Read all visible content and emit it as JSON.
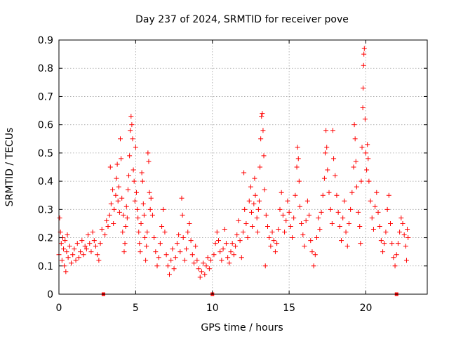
{
  "chart_data": {
    "type": "scatter",
    "title": "Day 237 of 2024, SRMTID for receiver pove",
    "xlabel": "GPS time / hours",
    "ylabel": "SRMTID / TECUs",
    "xlim": [
      0,
      24
    ],
    "ylim": [
      0,
      0.9
    ],
    "xticks": [
      0,
      5,
      10,
      15,
      20
    ],
    "xtick_labels": [
      "0",
      "5",
      "10",
      "15",
      "20"
    ],
    "yticks": [
      0,
      0.1,
      0.2,
      0.3,
      0.4,
      0.5,
      0.6,
      0.7,
      0.8,
      0.9
    ],
    "ytick_labels": [
      "0",
      "0.1",
      "0.2",
      "0.3",
      "0.4",
      "0.5",
      "0.6",
      "0.7",
      "0.8",
      "0.9"
    ],
    "grid": true,
    "marker": "+",
    "color": "#ff0000",
    "zero_markers": [
      2.9,
      10.0,
      22.0
    ],
    "series": [
      {
        "name": "SRMTID",
        "points": [
          [
            0.0,
            0.14
          ],
          [
            0.05,
            0.27
          ],
          [
            0.1,
            0.22
          ],
          [
            0.15,
            0.18
          ],
          [
            0.2,
            0.12
          ],
          [
            0.25,
            0.2
          ],
          [
            0.3,
            0.16
          ],
          [
            0.35,
            0.1
          ],
          [
            0.4,
            0.19
          ],
          [
            0.45,
            0.08
          ],
          [
            0.5,
            0.15
          ],
          [
            0.55,
            0.21
          ],
          [
            0.6,
            0.13
          ],
          [
            0.7,
            0.17
          ],
          [
            0.8,
            0.11
          ],
          [
            0.9,
            0.14
          ],
          [
            1.0,
            0.16
          ],
          [
            1.1,
            0.12
          ],
          [
            1.2,
            0.18
          ],
          [
            1.3,
            0.13
          ],
          [
            1.4,
            0.15
          ],
          [
            1.5,
            0.19
          ],
          [
            1.6,
            0.14
          ],
          [
            1.7,
            0.17
          ],
          [
            1.8,
            0.16
          ],
          [
            1.9,
            0.21
          ],
          [
            2.0,
            0.18
          ],
          [
            2.1,
            0.15
          ],
          [
            2.2,
            0.22
          ],
          [
            2.3,
            0.19
          ],
          [
            2.4,
            0.17
          ],
          [
            2.5,
            0.14
          ],
          [
            2.6,
            0.12
          ],
          [
            2.7,
            0.18
          ],
          [
            2.8,
            0.23
          ],
          [
            3.0,
            0.21
          ],
          [
            3.1,
            0.26
          ],
          [
            3.2,
            0.24
          ],
          [
            3.3,
            0.28
          ],
          [
            3.35,
            0.45
          ],
          [
            3.4,
            0.32
          ],
          [
            3.5,
            0.37
          ],
          [
            3.55,
            0.25
          ],
          [
            3.6,
            0.3
          ],
          [
            3.7,
            0.35
          ],
          [
            3.75,
            0.41
          ],
          [
            3.8,
            0.46
          ],
          [
            3.85,
            0.33
          ],
          [
            3.9,
            0.38
          ],
          [
            3.95,
            0.29
          ],
          [
            4.0,
            0.55
          ],
          [
            4.05,
            0.48
          ],
          [
            4.1,
            0.34
          ],
          [
            4.15,
            0.22
          ],
          [
            4.2,
            0.28
          ],
          [
            4.25,
            0.15
          ],
          [
            4.3,
            0.18
          ],
          [
            4.35,
            0.24
          ],
          [
            4.4,
            0.31
          ],
          [
            4.45,
            0.27
          ],
          [
            4.5,
            0.37
          ],
          [
            4.55,
            0.42
          ],
          [
            4.6,
            0.49
          ],
          [
            4.65,
            0.58
          ],
          [
            4.7,
            0.63
          ],
          [
            4.75,
            0.6
          ],
          [
            4.8,
            0.55
          ],
          [
            4.85,
            0.44
          ],
          [
            4.9,
            0.4
          ],
          [
            4.95,
            0.33
          ],
          [
            5.0,
            0.52
          ],
          [
            5.05,
            0.36
          ],
          [
            5.1,
            0.3
          ],
          [
            5.15,
            0.27
          ],
          [
            5.2,
            0.22
          ],
          [
            5.25,
            0.18
          ],
          [
            5.3,
            0.15
          ],
          [
            5.35,
            0.25
          ],
          [
            5.4,
            0.43
          ],
          [
            5.45,
            0.4
          ],
          [
            5.5,
            0.32
          ],
          [
            5.55,
            0.28
          ],
          [
            5.6,
            0.2
          ],
          [
            5.65,
            0.12
          ],
          [
            5.7,
            0.17
          ],
          [
            5.75,
            0.22
          ],
          [
            5.8,
            0.5
          ],
          [
            5.85,
            0.47
          ],
          [
            5.9,
            0.36
          ],
          [
            5.95,
            0.3
          ],
          [
            6.0,
            0.34
          ],
          [
            6.1,
            0.28
          ],
          [
            6.2,
            0.2
          ],
          [
            6.3,
            0.15
          ],
          [
            6.4,
            0.1
          ],
          [
            6.5,
            0.13
          ],
          [
            6.6,
            0.18
          ],
          [
            6.7,
            0.24
          ],
          [
            6.8,
            0.3
          ],
          [
            6.9,
            0.22
          ],
          [
            7.0,
            0.14
          ],
          [
            7.1,
            0.1
          ],
          [
            7.2,
            0.07
          ],
          [
            7.3,
            0.12
          ],
          [
            7.4,
            0.16
          ],
          [
            7.5,
            0.09
          ],
          [
            7.6,
            0.13
          ],
          [
            7.7,
            0.18
          ],
          [
            7.8,
            0.21
          ],
          [
            7.9,
            0.15
          ],
          [
            8.0,
            0.34
          ],
          [
            8.05,
            0.28
          ],
          [
            8.1,
            0.2
          ],
          [
            8.2,
            0.12
          ],
          [
            8.3,
            0.16
          ],
          [
            8.4,
            0.22
          ],
          [
            8.5,
            0.25
          ],
          [
            8.6,
            0.19
          ],
          [
            8.7,
            0.14
          ],
          [
            8.8,
            0.11
          ],
          [
            8.9,
            0.17
          ],
          [
            9.0,
            0.12
          ],
          [
            9.1,
            0.09
          ],
          [
            9.2,
            0.06
          ],
          [
            9.3,
            0.08
          ],
          [
            9.4,
            0.11
          ],
          [
            9.5,
            0.07
          ],
          [
            9.6,
            0.1
          ],
          [
            9.7,
            0.13
          ],
          [
            9.8,
            0.09
          ],
          [
            9.9,
            0.12
          ],
          [
            10.1,
            0.14
          ],
          [
            10.2,
            0.18
          ],
          [
            10.3,
            0.22
          ],
          [
            10.4,
            0.19
          ],
          [
            10.5,
            0.15
          ],
          [
            10.6,
            0.12
          ],
          [
            10.7,
            0.16
          ],
          [
            10.8,
            0.23
          ],
          [
            10.9,
            0.18
          ],
          [
            11.0,
            0.13
          ],
          [
            11.1,
            0.11
          ],
          [
            11.2,
            0.15
          ],
          [
            11.3,
            0.18
          ],
          [
            11.4,
            0.14
          ],
          [
            11.5,
            0.17
          ],
          [
            11.6,
            0.21
          ],
          [
            11.7,
            0.26
          ],
          [
            11.8,
            0.19
          ],
          [
            11.9,
            0.13
          ],
          [
            12.0,
            0.22
          ],
          [
            12.05,
            0.43
          ],
          [
            12.1,
            0.3
          ],
          [
            12.2,
            0.25
          ],
          [
            12.3,
            0.2
          ],
          [
            12.4,
            0.33
          ],
          [
            12.5,
            0.38
          ],
          [
            12.55,
            0.29
          ],
          [
            12.6,
            0.24
          ],
          [
            12.7,
            0.32
          ],
          [
            12.75,
            0.41
          ],
          [
            12.8,
            0.35
          ],
          [
            12.9,
            0.27
          ],
          [
            12.95,
            0.22
          ],
          [
            13.0,
            0.3
          ],
          [
            13.05,
            0.33
          ],
          [
            13.1,
            0.45
          ],
          [
            13.15,
            0.55
          ],
          [
            13.2,
            0.63
          ],
          [
            13.25,
            0.64
          ],
          [
            13.3,
            0.58
          ],
          [
            13.35,
            0.49
          ],
          [
            13.4,
            0.37
          ],
          [
            13.45,
            0.1
          ],
          [
            13.5,
            0.28
          ],
          [
            13.6,
            0.24
          ],
          [
            13.7,
            0.2
          ],
          [
            13.8,
            0.17
          ],
          [
            13.9,
            0.22
          ],
          [
            14.0,
            0.19
          ],
          [
            14.1,
            0.15
          ],
          [
            14.2,
            0.18
          ],
          [
            14.3,
            0.23
          ],
          [
            14.4,
            0.3
          ],
          [
            14.5,
            0.36
          ],
          [
            14.6,
            0.28
          ],
          [
            14.7,
            0.22
          ],
          [
            14.8,
            0.26
          ],
          [
            14.9,
            0.33
          ],
          [
            15.0,
            0.29
          ],
          [
            15.1,
            0.24
          ],
          [
            15.2,
            0.2
          ],
          [
            15.3,
            0.27
          ],
          [
            15.4,
            0.35
          ],
          [
            15.5,
            0.45
          ],
          [
            15.55,
            0.52
          ],
          [
            15.6,
            0.48
          ],
          [
            15.65,
            0.4
          ],
          [
            15.7,
            0.31
          ],
          [
            15.8,
            0.25
          ],
          [
            15.9,
            0.21
          ],
          [
            16.0,
            0.17
          ],
          [
            16.1,
            0.26
          ],
          [
            16.2,
            0.33
          ],
          [
            16.3,
            0.28
          ],
          [
            16.4,
            0.19
          ],
          [
            16.5,
            0.15
          ],
          [
            16.6,
            0.1
          ],
          [
            16.7,
            0.14
          ],
          [
            16.8,
            0.2
          ],
          [
            16.9,
            0.27
          ],
          [
            17.0,
            0.23
          ],
          [
            17.1,
            0.29
          ],
          [
            17.2,
            0.35
          ],
          [
            17.3,
            0.41
          ],
          [
            17.35,
            0.5
          ],
          [
            17.4,
            0.58
          ],
          [
            17.45,
            0.52
          ],
          [
            17.5,
            0.44
          ],
          [
            17.6,
            0.36
          ],
          [
            17.7,
            0.3
          ],
          [
            17.8,
            0.25
          ],
          [
            17.85,
            0.58
          ],
          [
            17.9,
            0.48
          ],
          [
            18.0,
            0.42
          ],
          [
            18.1,
            0.35
          ],
          [
            18.2,
            0.29
          ],
          [
            18.3,
            0.24
          ],
          [
            18.4,
            0.19
          ],
          [
            18.5,
            0.27
          ],
          [
            18.6,
            0.33
          ],
          [
            18.7,
            0.22
          ],
          [
            18.8,
            0.17
          ],
          [
            18.9,
            0.25
          ],
          [
            19.0,
            0.3
          ],
          [
            19.1,
            0.36
          ],
          [
            19.2,
            0.45
          ],
          [
            19.25,
            0.6
          ],
          [
            19.3,
            0.55
          ],
          [
            19.35,
            0.47
          ],
          [
            19.4,
            0.38
          ],
          [
            19.5,
            0.29
          ],
          [
            19.6,
            0.24
          ],
          [
            19.65,
            0.18
          ],
          [
            19.7,
            0.4
          ],
          [
            19.75,
            0.52
          ],
          [
            19.8,
            0.66
          ],
          [
            19.82,
            0.73
          ],
          [
            19.85,
            0.81
          ],
          [
            19.87,
            0.85
          ],
          [
            19.9,
            0.87
          ],
          [
            19.95,
            0.62
          ],
          [
            20.0,
            0.5
          ],
          [
            20.05,
            0.44
          ],
          [
            20.1,
            0.53
          ],
          [
            20.15,
            0.48
          ],
          [
            20.2,
            0.4
          ],
          [
            20.3,
            0.33
          ],
          [
            20.4,
            0.27
          ],
          [
            20.5,
            0.23
          ],
          [
            20.6,
            0.31
          ],
          [
            20.7,
            0.36
          ],
          [
            20.8,
            0.29
          ],
          [
            20.9,
            0.24
          ],
          [
            21.0,
            0.19
          ],
          [
            21.1,
            0.15
          ],
          [
            21.2,
            0.18
          ],
          [
            21.3,
            0.22
          ],
          [
            21.4,
            0.3
          ],
          [
            21.5,
            0.35
          ],
          [
            21.6,
            0.25
          ],
          [
            21.7,
            0.18
          ],
          [
            21.8,
            0.13
          ],
          [
            21.9,
            0.1
          ],
          [
            22.0,
            0.14
          ],
          [
            22.1,
            0.18
          ],
          [
            22.2,
            0.22
          ],
          [
            22.3,
            0.27
          ],
          [
            22.4,
            0.25
          ],
          [
            22.5,
            0.21
          ],
          [
            22.6,
            0.17
          ],
          [
            22.65,
            0.12
          ],
          [
            22.7,
            0.23
          ],
          [
            22.75,
            0.2
          ]
        ]
      }
    ]
  }
}
